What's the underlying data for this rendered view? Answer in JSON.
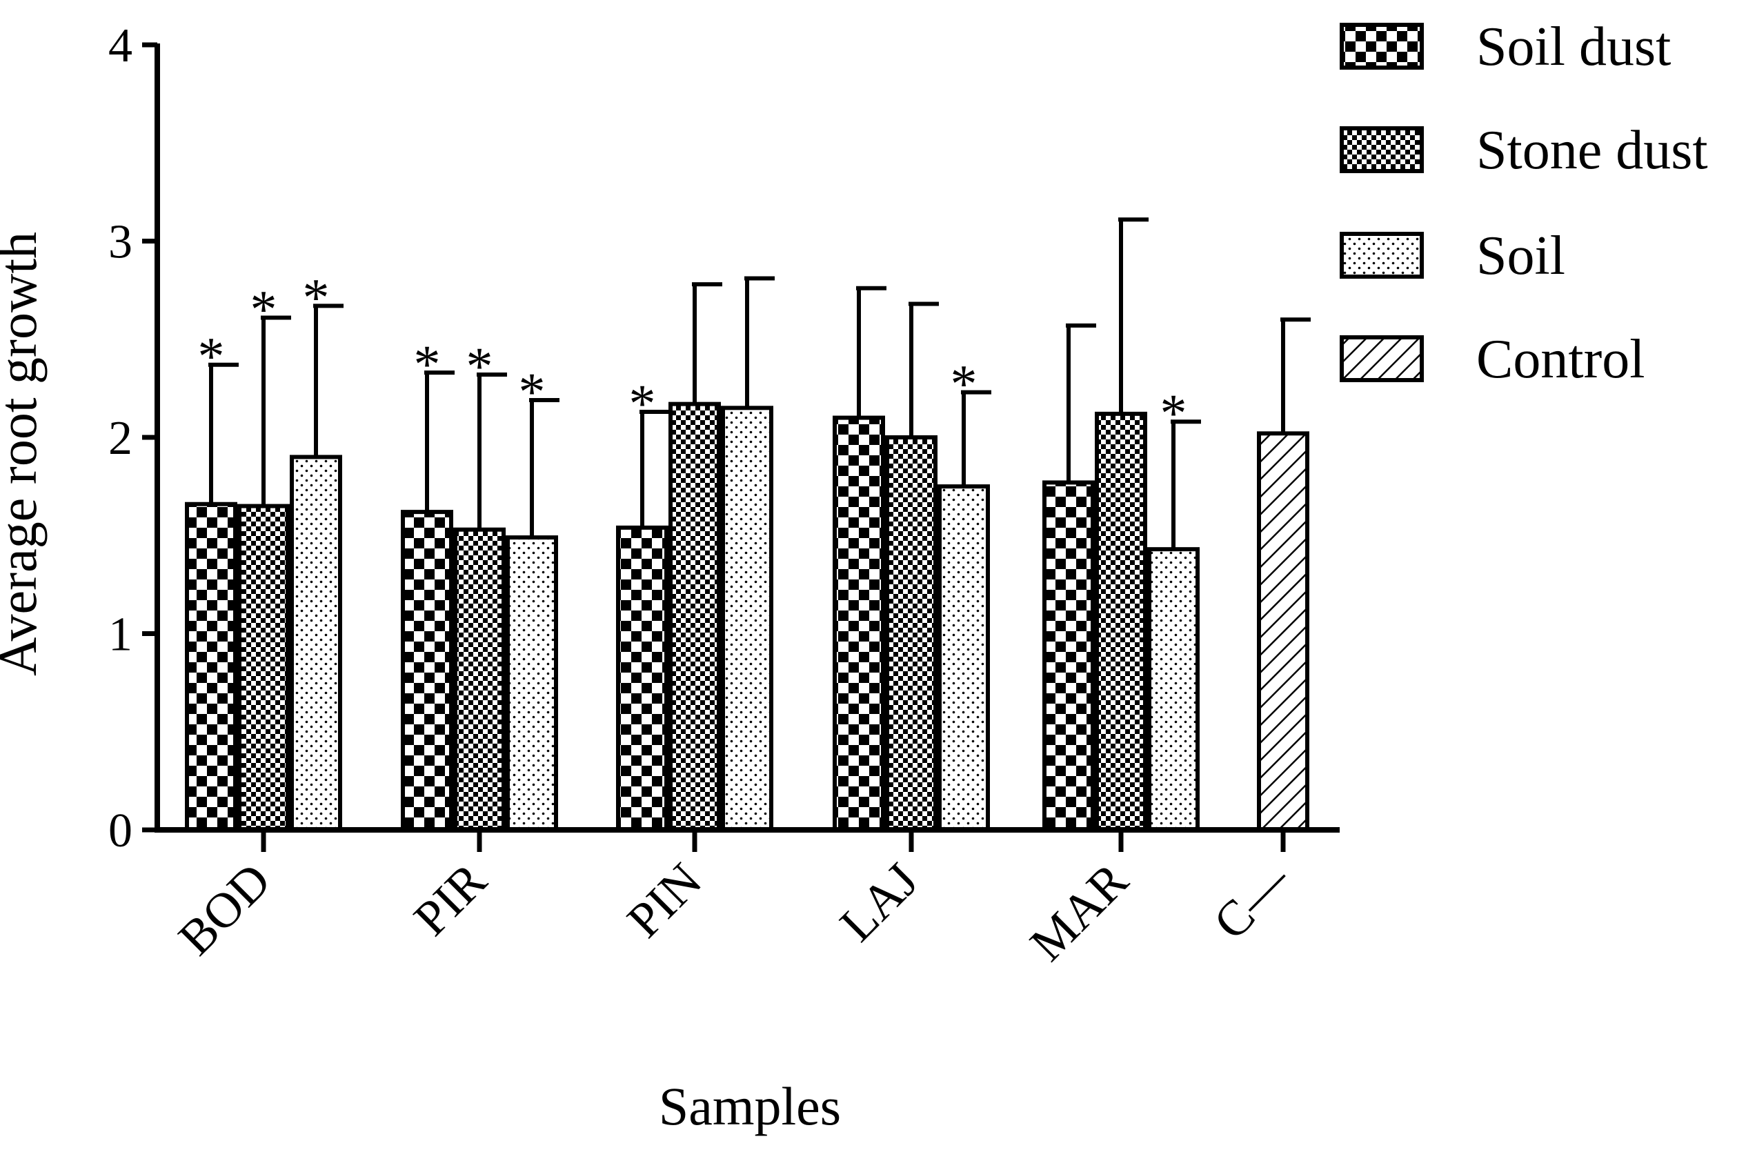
{
  "chart_data": {
    "type": "bar",
    "xlabel": "Samples",
    "ylabel": "Average root growth",
    "ylim": [
      0,
      4
    ],
    "yticks": [
      "0",
      "1",
      "2",
      "3",
      "4"
    ],
    "categories": [
      "BOD",
      "PIR",
      "PIN",
      "LAJ",
      "MAR",
      "C—"
    ],
    "significance_marker": "*",
    "series": [
      {
        "name": "Soil dust",
        "pattern": "checker-large",
        "values": [
          1.66,
          1.62,
          1.54,
          2.1,
          1.77,
          null
        ],
        "errors": [
          0.71,
          0.71,
          0.59,
          0.66,
          0.8,
          null
        ],
        "significant": [
          true,
          true,
          true,
          false,
          false,
          false
        ]
      },
      {
        "name": "Stone dust",
        "pattern": "checker-small",
        "values": [
          1.65,
          1.53,
          2.17,
          2.0,
          2.12,
          null
        ],
        "errors": [
          0.96,
          0.79,
          0.61,
          0.68,
          0.99,
          null
        ],
        "significant": [
          true,
          true,
          false,
          false,
          false,
          false
        ]
      },
      {
        "name": "Soil",
        "pattern": "dots",
        "values": [
          1.9,
          1.49,
          2.15,
          1.75,
          1.43,
          null
        ],
        "errors": [
          0.77,
          0.7,
          0.66,
          0.48,
          0.65,
          null
        ],
        "significant": [
          true,
          true,
          false,
          true,
          true,
          false
        ]
      },
      {
        "name": "Control",
        "pattern": "diagonal",
        "values": [
          null,
          null,
          null,
          null,
          null,
          2.02
        ],
        "errors": [
          null,
          null,
          null,
          null,
          null,
          0.58
        ],
        "significant": [
          false,
          false,
          false,
          false,
          false,
          false
        ]
      }
    ],
    "legend_position": "top-right",
    "colors": {
      "stroke": "#000000",
      "fill_dark": "#000000",
      "fill_light": "#ffffff"
    }
  }
}
